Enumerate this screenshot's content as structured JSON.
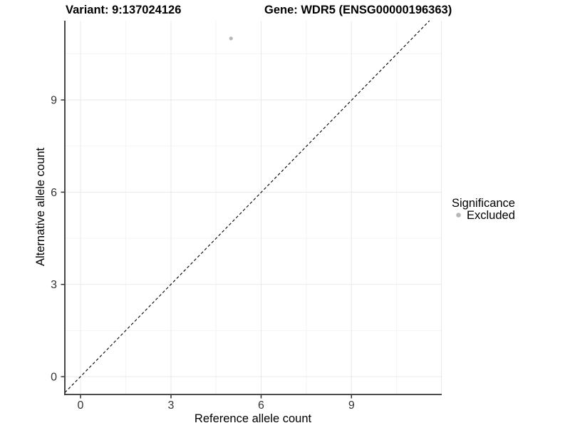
{
  "titles": {
    "variant": "Variant: 9:137024126",
    "gene": "Gene: WDR5 (ENSG00000196363)"
  },
  "axes": {
    "x": {
      "label": "Reference allele count",
      "ticks": [
        "0",
        "3",
        "6",
        "9"
      ]
    },
    "y": {
      "label": "Alternative allele count",
      "ticks": [
        "0",
        "3",
        "6",
        "9"
      ]
    }
  },
  "legend": {
    "title": "Significance",
    "items": [
      {
        "label": "Excluded",
        "color": "#b8b8b8",
        "marker": "circle"
      }
    ]
  },
  "colors": {
    "point": "#b8b8b8",
    "axis_line": "#333333",
    "grid_major": "#e9e9e9",
    "grid_minor": "#f4f4f4",
    "reference_line": "#000000",
    "tick_text": "#333333"
  },
  "chart_data": {
    "type": "scatter",
    "title": "Variant: 9:137024126 — Gene: WDR5 (ENSG00000196363)",
    "xlabel": "Reference allele count",
    "ylabel": "Alternative allele count",
    "xlim": [
      -0.55,
      12
    ],
    "ylim": [
      -0.6,
      11.6
    ],
    "x_major_ticks": [
      0,
      3,
      6,
      9
    ],
    "y_major_ticks": [
      0,
      3,
      6,
      9
    ],
    "grid": "major and minor gridlines, light gray on white",
    "legend_position": "right",
    "series": [
      {
        "name": "Excluded",
        "color": "#b8b8b8",
        "points": [
          {
            "x": 5,
            "y": 11
          }
        ]
      }
    ],
    "reference_line": {
      "type": "identity y=x",
      "style": "dashed",
      "color": "#000000"
    }
  }
}
